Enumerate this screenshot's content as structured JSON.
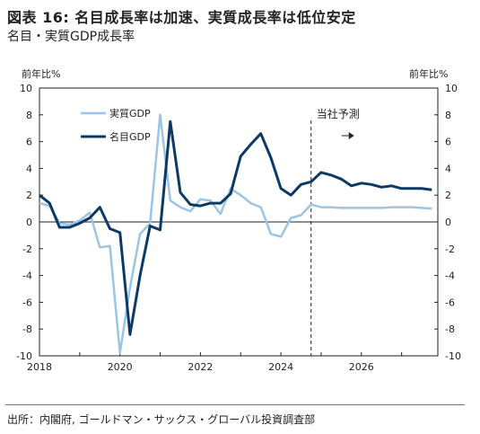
{
  "title": "図表 16: 名目成長率は加速、実質成長率は低位安定",
  "subtitle": "名目・実質GDP成長率",
  "source": "出所：内閣府, ゴールドマン・サックス・グローバル投資調査部",
  "chart_data": {
    "type": "line",
    "unit_left": "前年比%",
    "unit_right": "前年比%",
    "forecast_label": "当社予測",
    "forecast_start": 2024.75,
    "xlim": [
      2018,
      2027.9
    ],
    "ylim": [
      -10,
      10
    ],
    "x_ticks": [
      "2018",
      "2020",
      "2022",
      "2024",
      "2026"
    ],
    "y_ticks": [
      "10",
      "8",
      "6",
      "4",
      "2",
      "0",
      "-2",
      "-4",
      "-6",
      "-8",
      "-10"
    ],
    "series": [
      {
        "name": "実質GDP",
        "color": "#9cc4e4",
        "x": [
          2018.0,
          2018.25,
          2018.5,
          2018.75,
          2019.0,
          2019.25,
          2019.5,
          2019.75,
          2020.0,
          2020.25,
          2020.5,
          2020.75,
          2021.0,
          2021.25,
          2021.5,
          2021.75,
          2022.0,
          2022.25,
          2022.5,
          2022.75,
          2023.0,
          2023.25,
          2023.5,
          2023.75,
          2024.0,
          2024.25,
          2024.5,
          2024.75,
          2025.0,
          2025.25,
          2025.5,
          2025.75,
          2026.0,
          2026.25,
          2026.5,
          2026.75,
          2027.0,
          2027.25,
          2027.5,
          2027.75
        ],
        "values": [
          1.4,
          1.2,
          -0.1,
          -0.2,
          0.1,
          0.7,
          -1.9,
          -1.8,
          -9.8,
          -4.9,
          -0.9,
          -0.1,
          8.0,
          1.6,
          1.1,
          0.8,
          1.7,
          1.6,
          0.6,
          2.5,
          2.0,
          1.4,
          1.1,
          -0.9,
          -1.1,
          0.3,
          0.5,
          1.3,
          1.1,
          1.1,
          1.05,
          1.05,
          1.05,
          1.05,
          1.05,
          1.1,
          1.1,
          1.1,
          1.05,
          1.0
        ]
      },
      {
        "name": "名目GDP",
        "color": "#0c3a66",
        "x": [
          2018.0,
          2018.25,
          2018.5,
          2018.75,
          2019.0,
          2019.25,
          2019.5,
          2019.75,
          2020.0,
          2020.25,
          2020.5,
          2020.75,
          2021.0,
          2021.25,
          2021.5,
          2021.75,
          2022.0,
          2022.25,
          2022.5,
          2022.75,
          2023.0,
          2023.25,
          2023.5,
          2023.75,
          2024.0,
          2024.25,
          2024.5,
          2024.75,
          2025.0,
          2025.25,
          2025.5,
          2025.75,
          2026.0,
          2026.25,
          2026.5,
          2026.75,
          2027.0,
          2027.25,
          2027.5,
          2027.75
        ],
        "values": [
          2.0,
          1.4,
          -0.4,
          -0.4,
          -0.1,
          0.3,
          1.1,
          -0.5,
          -0.8,
          -8.4,
          -4.0,
          -0.3,
          -0.6,
          7.5,
          2.2,
          1.3,
          1.2,
          1.4,
          1.4,
          2.1,
          4.9,
          5.8,
          6.6,
          4.8,
          2.5,
          2.0,
          2.8,
          3.0,
          3.7,
          3.5,
          3.2,
          2.7,
          2.9,
          2.8,
          2.6,
          2.7,
          2.5,
          2.5,
          2.5,
          2.4
        ]
      }
    ]
  }
}
